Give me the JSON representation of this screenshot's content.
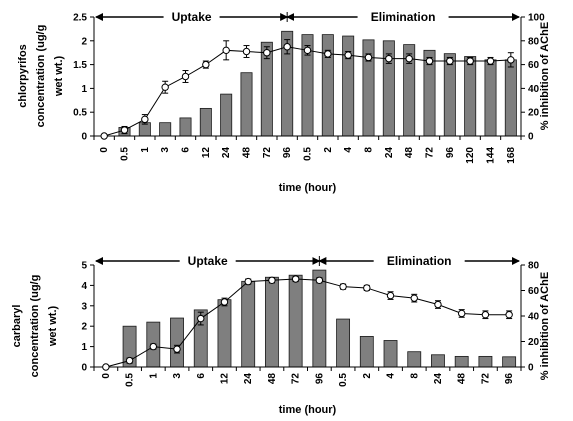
{
  "chart_data": [
    {
      "type": "bar+line",
      "categories": [
        "0",
        "0.5",
        "1",
        "3",
        "6",
        "12",
        "24",
        "48",
        "72",
        "96",
        "0.5",
        "2",
        "4",
        "8",
        "24",
        "48",
        "72",
        "96",
        "120",
        "144",
        "168"
      ],
      "phases": [
        {
          "label": "Uptake",
          "from_index": 0,
          "to_index": 9
        },
        {
          "label": "Elimination",
          "from_index": 9,
          "to_index": 20
        }
      ],
      "xlabel": "time (hour)",
      "ylabel_left": [
        "chlorpyrifos",
        "concentration (ug/g",
        "wet wt.)"
      ],
      "ylabel_right": "% inhibition of AChE",
      "ylim_left": [
        0,
        2.5
      ],
      "yticks_left": [
        0,
        0.5,
        1,
        1.5,
        2,
        2.5
      ],
      "ytick_labels_left": [
        "0",
        "0.5",
        "1",
        "1.5",
        "2",
        "2.5"
      ],
      "ylim_right": [
        0,
        100
      ],
      "yticks_right": [
        0,
        20,
        40,
        60,
        80,
        100
      ],
      "ytick_labels_right": [
        "0",
        "20",
        "40",
        "60",
        "80",
        "100"
      ],
      "bars": [
        0,
        0.18,
        0.28,
        0.28,
        0.38,
        0.58,
        0.88,
        1.33,
        1.97,
        2.2,
        2.13,
        2.13,
        2.1,
        2.02,
        2.0,
        1.92,
        1.8,
        1.73,
        1.67,
        1.6,
        1.6
      ],
      "line": [
        0,
        5,
        14,
        41,
        50,
        60,
        72,
        71,
        70,
        75,
        72,
        69,
        68,
        66,
        65,
        65,
        63,
        63,
        63,
        63,
        64
      ],
      "line_err": [
        0,
        3,
        4,
        5,
        5,
        3,
        8,
        5,
        5,
        6,
        4,
        3,
        3,
        3,
        4,
        4,
        3,
        3,
        3,
        3,
        6
      ]
    },
    {
      "type": "bar+line",
      "categories": [
        "0",
        "0.5",
        "1",
        "3",
        "6",
        "12",
        "24",
        "48",
        "72",
        "96",
        "0.5",
        "2",
        "4",
        "8",
        "24",
        "48",
        "72",
        "96"
      ],
      "phases": [
        {
          "label": "Uptake",
          "from_index": 0,
          "to_index": 9
        },
        {
          "label": "Elimination",
          "from_index": 9,
          "to_index": 17
        }
      ],
      "xlabel": "time (hour)",
      "ylabel_left": [
        "carbaryl",
        "concentration (ug/g",
        "wet wt.)"
      ],
      "ylabel_right": "% inhibition of AChE",
      "ylim_left": [
        0,
        5
      ],
      "yticks_left": [
        0,
        1,
        2,
        3,
        4,
        5
      ],
      "ytick_labels_left": [
        "0",
        "1",
        "2",
        "3",
        "4",
        "5"
      ],
      "ylim_right": [
        0,
        80
      ],
      "yticks_right": [
        0,
        20,
        40,
        60,
        80
      ],
      "ytick_labels_right": [
        "0",
        "20",
        "40",
        "60",
        "80"
      ],
      "bars": [
        0,
        2.0,
        2.2,
        2.4,
        2.8,
        3.3,
        4.2,
        4.4,
        4.5,
        4.75,
        2.35,
        1.5,
        1.3,
        0.75,
        0.6,
        0.52,
        0.52,
        0.5
      ],
      "line": [
        0,
        5,
        16,
        14,
        38,
        51,
        67,
        68,
        69,
        68,
        63,
        62,
        56,
        54,
        49,
        42,
        41,
        41
      ],
      "line_err": [
        0,
        2,
        2,
        3,
        5,
        3,
        2,
        2,
        2,
        2,
        2,
        2,
        3,
        3,
        3,
        3,
        3,
        3
      ]
    }
  ]
}
